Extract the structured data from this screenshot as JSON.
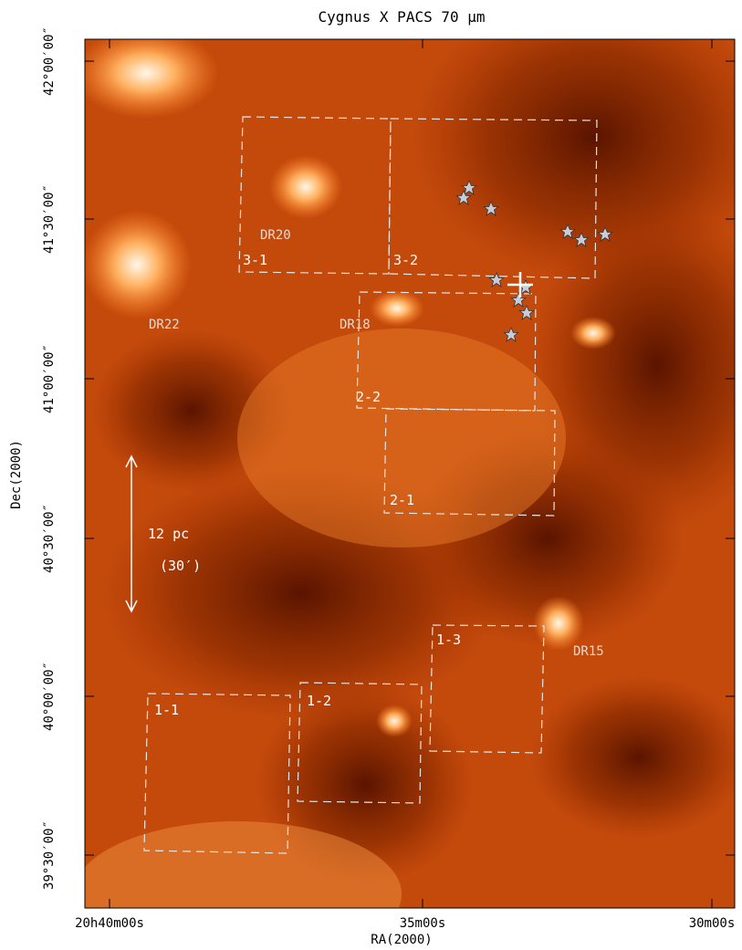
{
  "title": "Cygnus X PACS 70 μm",
  "x_axis": {
    "label": "RA(2000)",
    "ticks": [
      "20h40m00s",
      "35m00s",
      "30m00s"
    ]
  },
  "y_axis": {
    "label": "Dec(2000)",
    "ticks": [
      "42°00′00″",
      "41°30′00″",
      "41°00′00″",
      "40°30′00″",
      "40°00′00″",
      "39°30′00″"
    ]
  },
  "regions": [
    "3-1",
    "3-2",
    "2-2",
    "2-1",
    "1-3",
    "1-1",
    "1-2"
  ],
  "sources": [
    "DR20",
    "DR22",
    "DR18",
    "DR15"
  ],
  "scale_bar": {
    "length": "12 pc",
    "angle": "(30′)"
  }
}
